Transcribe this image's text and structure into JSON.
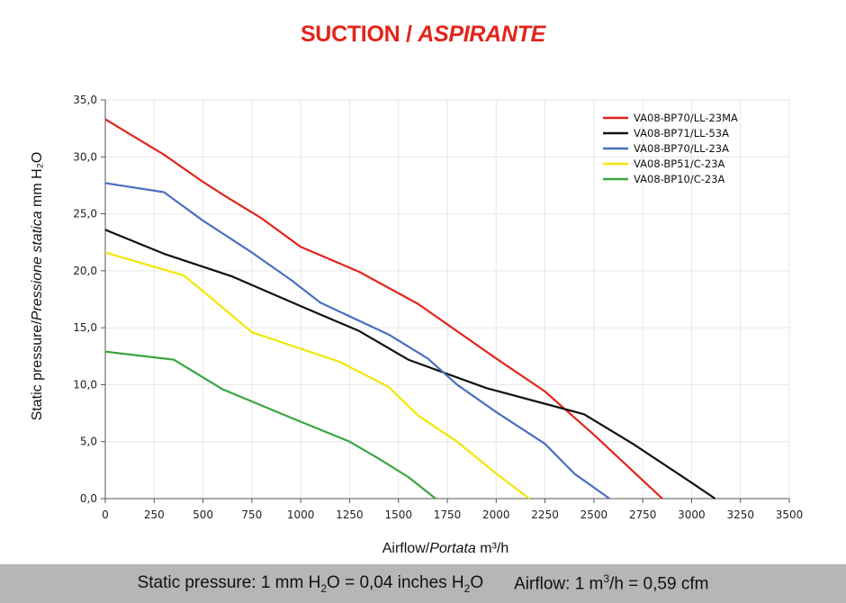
{
  "title": {
    "main": "SUCTION",
    "separator": " / ",
    "italic": "ASPIRANTE"
  },
  "chart_data": {
    "type": "line",
    "xlabel_main": "Airflow",
    "xlabel_italic": "Portata",
    "xlabel_unit": "m³/h",
    "ylabel_main": "Static pressure",
    "ylabel_italic": "Pressione statica",
    "ylabel_unit": "mm H₂O",
    "xlim": [
      0,
      3500
    ],
    "ylim": [
      0,
      35
    ],
    "xticks": [
      0,
      250,
      500,
      750,
      1000,
      1250,
      1500,
      1750,
      2000,
      2250,
      2500,
      2750,
      3000,
      3250,
      3500
    ],
    "yticks": [
      0,
      5,
      10,
      15,
      20,
      25,
      30,
      35
    ],
    "ytick_labels": [
      "0,0",
      "5,0",
      "10,0",
      "15,0",
      "20,0",
      "25,0",
      "30,0",
      "35,0"
    ],
    "grid": true,
    "legend_position": "top-right",
    "series": [
      {
        "name": "VA08-BP70/LL-23MA",
        "color": "#e3241b",
        "points": [
          [
            0,
            33.3
          ],
          [
            300,
            30.2
          ],
          [
            500,
            27.8
          ],
          [
            600,
            26.7
          ],
          [
            800,
            24.6
          ],
          [
            1000,
            22.1
          ],
          [
            1300,
            19.9
          ],
          [
            1600,
            17.1
          ],
          [
            2000,
            12.3
          ],
          [
            2250,
            9.4
          ],
          [
            2500,
            5.6
          ],
          [
            2700,
            2.4
          ],
          [
            2850,
            0
          ]
        ]
      },
      {
        "name": "VA08-BP71/LL-53A",
        "color": "#111111",
        "points": [
          [
            0,
            23.6
          ],
          [
            300,
            21.5
          ],
          [
            650,
            19.5
          ],
          [
            1000,
            16.9
          ],
          [
            1300,
            14.7
          ],
          [
            1550,
            12.2
          ],
          [
            1950,
            9.7
          ],
          [
            2450,
            7.4
          ],
          [
            2700,
            4.8
          ],
          [
            3000,
            1.4
          ],
          [
            3120,
            0
          ]
        ]
      },
      {
        "name": "VA08-BP70/LL-23A",
        "color": "#4a6fc0",
        "points": [
          [
            0,
            27.7
          ],
          [
            300,
            26.9
          ],
          [
            500,
            24.4
          ],
          [
            750,
            21.6
          ],
          [
            950,
            19.2
          ],
          [
            1100,
            17.2
          ],
          [
            1450,
            14.4
          ],
          [
            1650,
            12.3
          ],
          [
            1800,
            10.0
          ],
          [
            2000,
            7.6
          ],
          [
            2250,
            4.8
          ],
          [
            2400,
            2.2
          ],
          [
            2580,
            0
          ]
        ]
      },
      {
        "name": "VA08-BP51/C-23A",
        "color": "#f2e600",
        "points": [
          [
            0,
            21.6
          ],
          [
            400,
            19.6
          ],
          [
            550,
            17.5
          ],
          [
            750,
            14.6
          ],
          [
            1200,
            12.0
          ],
          [
            1450,
            9.8
          ],
          [
            1600,
            7.3
          ],
          [
            1800,
            5.0
          ],
          [
            2000,
            2.2
          ],
          [
            2170,
            0
          ]
        ]
      },
      {
        "name": "VA08-BP10/C-23A",
        "color": "#3aa640",
        "points": [
          [
            0,
            12.9
          ],
          [
            350,
            12.2
          ],
          [
            600,
            9.6
          ],
          [
            950,
            7.1
          ],
          [
            1250,
            5.0
          ],
          [
            1400,
            3.5
          ],
          [
            1550,
            1.9
          ],
          [
            1690,
            0
          ]
        ]
      }
    ]
  },
  "footer": {
    "pressure": {
      "a": "Static pressure: 1 mm H",
      "a_sub": "2",
      "b": "O = 0,04 inches H",
      "b_sub": "2",
      "c": "O"
    },
    "airflow": {
      "a": "Airflow: 1 m",
      "a_sup": "3",
      "b": "/h = 0,59 cfm"
    }
  }
}
